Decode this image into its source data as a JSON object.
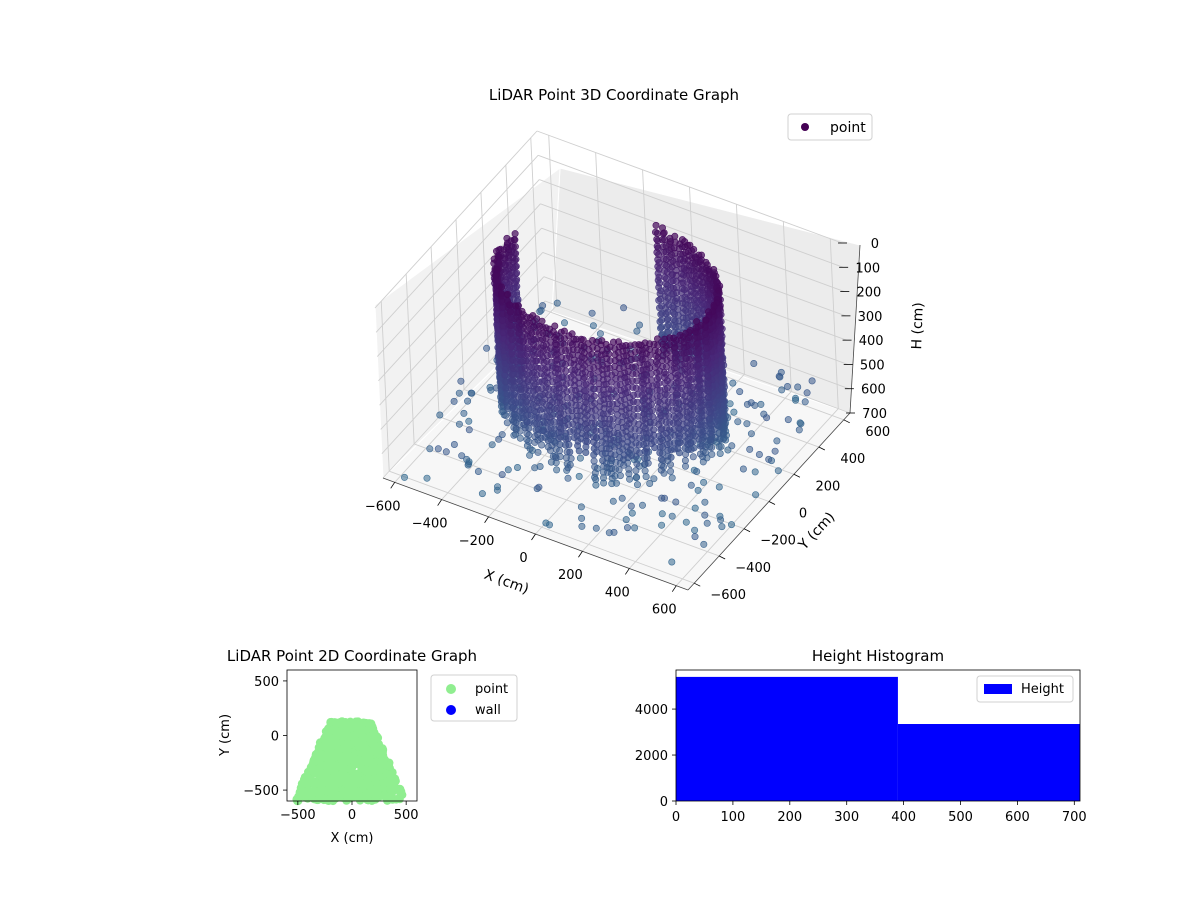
{
  "chart_data": [
    {
      "type": "scatter",
      "title": "LiDAR Point 3D Coordinate Graph",
      "projection": "3d",
      "xlabel": "X (cm)",
      "ylabel": "Y (cm)",
      "zlabel": "H (cm)",
      "xlim": [
        -650,
        650
      ],
      "ylim": [
        -650,
        650
      ],
      "zlim": [
        700,
        0
      ],
      "x_ticks": [
        "−600",
        "−400",
        "−200",
        "0",
        "200",
        "400",
        "600"
      ],
      "y_ticks": [
        "−600",
        "−400",
        "−200",
        "0",
        "200",
        "400",
        "600"
      ],
      "z_ticks": [
        "0",
        "100",
        "200",
        "300",
        "400",
        "500",
        "600",
        "700"
      ],
      "legend": {
        "position": "upper-right",
        "entries": [
          {
            "label": "point",
            "color": "#440154"
          }
        ]
      },
      "colormap": "viridis (by height)",
      "series": [
        {
          "name": "point",
          "shape": "U-shaped room wall scan: ring of vertical point columns, heights 0–700 cm, plus scattered floor points",
          "x_range": [
            -650,
            650
          ],
          "y_range": [
            -650,
            650
          ],
          "h_range": [
            0,
            700
          ]
        }
      ],
      "grid": true
    },
    {
      "type": "scatter",
      "title": "LiDAR Point 2D Coordinate Graph",
      "xlabel": "X (cm)",
      "ylabel": "Y (cm)",
      "xlim": [
        -600,
        600
      ],
      "ylim": [
        -600,
        600
      ],
      "x_ticks": [
        "−500",
        "0",
        "500"
      ],
      "y_ticks": [
        "500",
        "0",
        "−500"
      ],
      "legend": {
        "position": "outside-right",
        "entries": [
          {
            "label": "point",
            "color": "#90ee90"
          },
          {
            "label": "wall",
            "color": "#0000ff"
          }
        ]
      },
      "series": [
        {
          "name": "point",
          "color": "#90ee90",
          "extent": {
            "x": [
              -560,
              530
            ],
            "y": [
              -600,
              130
            ]
          }
        },
        {
          "name": "wall",
          "color": "#0000ff",
          "values": []
        }
      ]
    },
    {
      "type": "bar",
      "title": "Height Histogram",
      "xlabel": "",
      "ylabel": "",
      "xlim": [
        0,
        710
      ],
      "ylim": [
        0,
        5700
      ],
      "x_ticks": [
        "0",
        "100",
        "200",
        "300",
        "400",
        "500",
        "600",
        "700"
      ],
      "y_ticks": [
        "0",
        "2000",
        "4000"
      ],
      "bins": [
        {
          "from": 0,
          "to": 390,
          "count": 5400
        },
        {
          "from": 390,
          "to": 710,
          "count": 3350
        }
      ],
      "color": "#0000ff",
      "legend": {
        "position": "upper-right",
        "entries": [
          {
            "label": "Height",
            "color": "#0000ff"
          }
        ]
      }
    }
  ]
}
